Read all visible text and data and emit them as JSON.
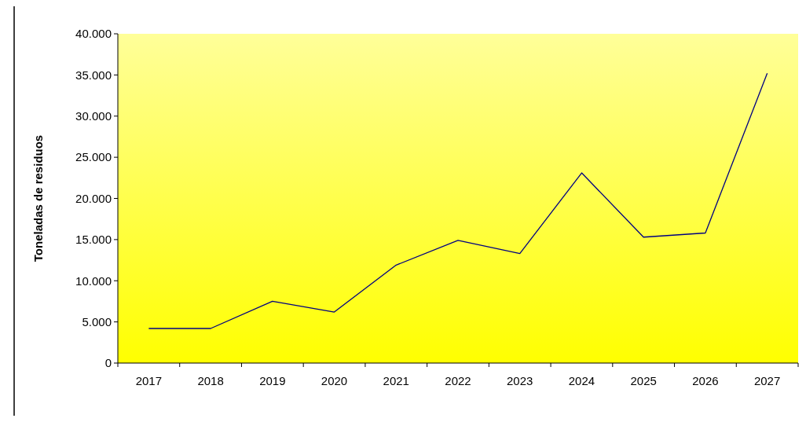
{
  "chart_data": {
    "type": "line",
    "ylabel": "Toneladas de residuos",
    "categories": [
      "2017",
      "2018",
      "2019",
      "2020",
      "2021",
      "2022",
      "2023",
      "2024",
      "2025",
      "2026",
      "2027"
    ],
    "series": [
      {
        "color": "#000080",
        "values": [
          4200,
          4200,
          7500,
          6200,
          11900,
          14900,
          13300,
          23100,
          15300,
          15800,
          35200
        ]
      }
    ],
    "ylim": [
      0,
      40000
    ],
    "yticks": [
      0,
      {
        "value": 5000,
        "label": "5.000"
      },
      {
        "value": 10000,
        "label": "10.000"
      },
      {
        "value": 15000,
        "label": "15.000"
      },
      {
        "value": 20000,
        "label": "20.000"
      },
      {
        "value": 25000,
        "label": "25.000"
      },
      {
        "value": 30000,
        "label": "30.000"
      },
      {
        "value": 35000,
        "label": "35.000"
      },
      {
        "value": 40000,
        "label": "40.000"
      }
    ],
    "grid": false,
    "marker": "none",
    "line_style": "solid"
  }
}
